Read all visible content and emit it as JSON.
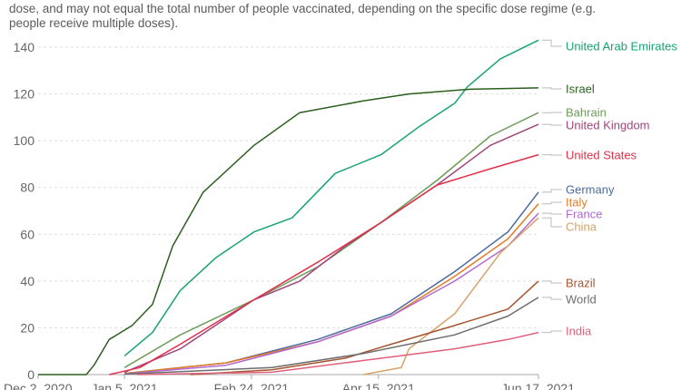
{
  "subtitle_lines": [
    "dose, and may not equal the total number of people vaccinated, depending on the specific dose regime (e.g.",
    "people receive multiple doses)."
  ],
  "chart_data": {
    "type": "line",
    "title": "",
    "xlabel": "",
    "ylabel": "",
    "ylim": [
      0,
      140
    ],
    "yticks": [
      0,
      20,
      40,
      60,
      80,
      100,
      120,
      140
    ],
    "x_unit": "days since Dec 2, 2020",
    "xlim": [
      0,
      197
    ],
    "xticks": [
      {
        "day": 0,
        "label": "Dec 2, 2020"
      },
      {
        "day": 34,
        "label": "Jan 5, 2021"
      },
      {
        "day": 84,
        "label": "Feb 24, 2021"
      },
      {
        "day": 134,
        "label": "Apr 15, 2021"
      },
      {
        "day": 197,
        "label": "Jun 17, 2021"
      }
    ],
    "grid": true,
    "legend": "right (end-of-line labels)",
    "series": [
      {
        "name": "United Arab Emirates",
        "color": "#18a374",
        "points": [
          [
            34,
            8
          ],
          [
            45,
            18
          ],
          [
            56,
            36
          ],
          [
            70,
            50
          ],
          [
            85,
            61
          ],
          [
            100,
            67
          ],
          [
            117,
            86
          ],
          [
            135,
            94
          ],
          [
            150,
            106
          ],
          [
            164,
            116
          ],
          [
            169,
            123
          ],
          [
            182,
            135
          ],
          [
            197,
            143
          ]
        ]
      },
      {
        "name": "Israel",
        "color": "#2b5f1e",
        "points": [
          [
            0,
            0
          ],
          [
            19,
            0
          ],
          [
            22,
            4
          ],
          [
            28,
            15
          ],
          [
            37,
            21
          ],
          [
            45,
            30
          ],
          [
            53,
            55
          ],
          [
            65,
            78
          ],
          [
            85,
            98
          ],
          [
            103,
            112
          ],
          [
            128,
            117
          ],
          [
            146,
            120
          ],
          [
            170,
            122
          ],
          [
            197,
            122.6
          ]
        ]
      },
      {
        "name": "Bahrain",
        "color": "#6d9c57",
        "points": [
          [
            34,
            3
          ],
          [
            56,
            17
          ],
          [
            85,
            32
          ],
          [
            110,
            46
          ],
          [
            135,
            65
          ],
          [
            157,
            83
          ],
          [
            178,
            102
          ],
          [
            197,
            112
          ]
        ]
      },
      {
        "name": "United Kingdom",
        "color": "#a2457d",
        "points": [
          [
            34,
            1
          ],
          [
            56,
            11
          ],
          [
            85,
            32
          ],
          [
            103,
            40
          ],
          [
            121,
            55
          ],
          [
            135,
            65
          ],
          [
            157,
            81
          ],
          [
            178,
            98
          ],
          [
            197,
            107
          ]
        ]
      },
      {
        "name": "United States",
        "color": "#e0304a",
        "points": [
          [
            28,
            0
          ],
          [
            40,
            3
          ],
          [
            56,
            13
          ],
          [
            85,
            32
          ],
          [
            110,
            48
          ],
          [
            135,
            65
          ],
          [
            157,
            81
          ],
          [
            178,
            88
          ],
          [
            197,
            94
          ]
        ]
      },
      {
        "name": "Germany",
        "color": "#4c6a9c",
        "points": [
          [
            34,
            0.5
          ],
          [
            74,
            5
          ],
          [
            110,
            15
          ],
          [
            139,
            26
          ],
          [
            164,
            44
          ],
          [
            185,
            61
          ],
          [
            197,
            78
          ]
        ]
      },
      {
        "name": "Italy",
        "color": "#e27c25",
        "points": [
          [
            34,
            0.5
          ],
          [
            74,
            5
          ],
          [
            110,
            14
          ],
          [
            139,
            25
          ],
          [
            164,
            42
          ],
          [
            185,
            58
          ],
          [
            197,
            73
          ]
        ]
      },
      {
        "name": "France",
        "color": "#b26ad1",
        "points": [
          [
            34,
            0.3
          ],
          [
            74,
            4
          ],
          [
            110,
            14
          ],
          [
            139,
            25
          ],
          [
            164,
            40
          ],
          [
            185,
            55
          ],
          [
            197,
            69
          ]
        ]
      },
      {
        "name": "China",
        "color": "#d6a36b",
        "points": [
          [
            128,
            0
          ],
          [
            143,
            3
          ],
          [
            146,
            11
          ],
          [
            164,
            26
          ],
          [
            182,
            52
          ],
          [
            197,
            67
          ]
        ]
      },
      {
        "name": "Brazil",
        "color": "#a5552e",
        "points": [
          [
            60,
            0
          ],
          [
            92,
            2
          ],
          [
            121,
            7
          ],
          [
            139,
            13
          ],
          [
            164,
            21
          ],
          [
            185,
            28
          ],
          [
            197,
            40
          ]
        ]
      },
      {
        "name": "World",
        "color": "#6d6d6d",
        "points": [
          [
            34,
            0.2
          ],
          [
            92,
            3
          ],
          [
            128,
            9
          ],
          [
            164,
            17
          ],
          [
            185,
            25
          ],
          [
            197,
            33
          ]
        ]
      },
      {
        "name": "India",
        "color": "#e0607a",
        "points": [
          [
            39,
            0
          ],
          [
            92,
            1
          ],
          [
            128,
            6
          ],
          [
            164,
            11
          ],
          [
            185,
            15
          ],
          [
            197,
            18
          ]
        ]
      }
    ]
  }
}
